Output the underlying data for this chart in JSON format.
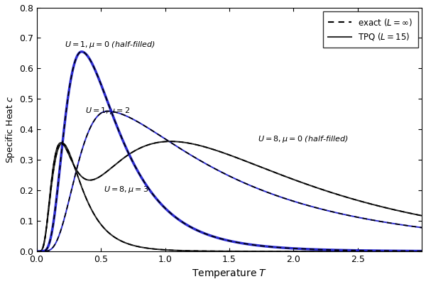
{
  "title": "",
  "xlabel": "Temperature $T$",
  "ylabel": "Specific Heat $c$",
  "xlim": [
    0,
    3.0
  ],
  "ylim": [
    0,
    0.8
  ],
  "xticks": [
    0,
    0.5,
    1.0,
    1.5,
    2.0,
    2.5
  ],
  "yticks": [
    0,
    0.1,
    0.2,
    0.3,
    0.4,
    0.5,
    0.6,
    0.7,
    0.8
  ],
  "legend_exact": "exact ($L=\\infty$)",
  "legend_tpq": "TPQ ($L=15$)",
  "background": "#ffffff",
  "ann_u1mu0": "$U = 1, \\mu = 0$ (half-filled)",
  "ann_u1mu2": "$U = 1, \\mu = 2$",
  "ann_u8mu0": "$U = 8, \\mu = 0$ (half-filled)",
  "ann_u8mu3": "$U = 8, \\mu = 3$"
}
